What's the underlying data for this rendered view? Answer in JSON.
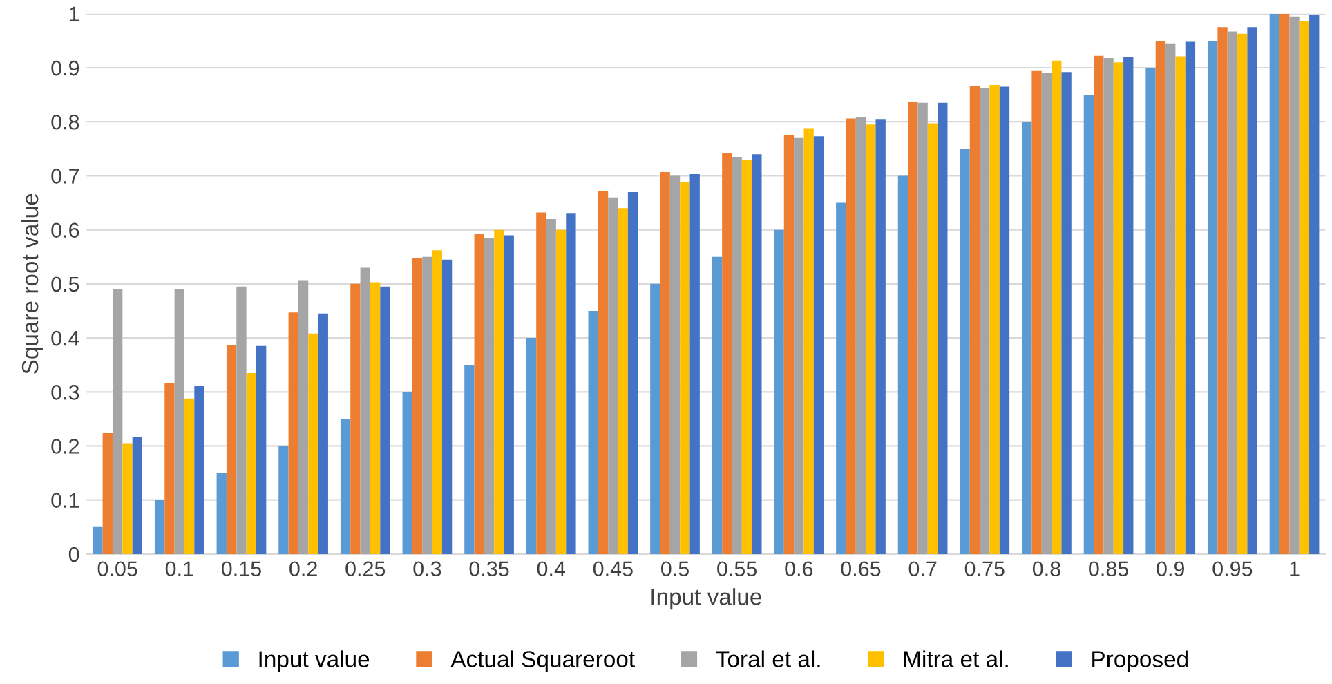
{
  "chart_data": {
    "type": "bar",
    "xlabel": "Input value",
    "ylabel": "Square root value",
    "categories": [
      "0.05",
      "0.1",
      "0.15",
      "0.2",
      "0.25",
      "0.3",
      "0.35",
      "0.4",
      "0.45",
      "0.5",
      "0.55",
      "0.6",
      "0.65",
      "0.7",
      "0.75",
      "0.8",
      "0.85",
      "0.9",
      "0.95",
      "1"
    ],
    "series": [
      {
        "name": "Input value",
        "color": "#5b9bd5",
        "values": [
          0.05,
          0.1,
          0.15,
          0.2,
          0.25,
          0.3,
          0.35,
          0.4,
          0.45,
          0.5,
          0.55,
          0.6,
          0.65,
          0.7,
          0.75,
          0.8,
          0.85,
          0.9,
          0.95,
          1
        ]
      },
      {
        "name": "Actual Squareroot",
        "color": "#ed7d31",
        "values": [
          0.224,
          0.316,
          0.387,
          0.447,
          0.5,
          0.548,
          0.592,
          0.632,
          0.671,
          0.707,
          0.742,
          0.775,
          0.806,
          0.837,
          0.866,
          0.894,
          0.922,
          0.949,
          0.975,
          1
        ]
      },
      {
        "name": "Toral et al.",
        "color": "#a5a5a5",
        "values": [
          0.49,
          0.49,
          0.495,
          0.507,
          0.53,
          0.55,
          0.585,
          0.62,
          0.66,
          0.7,
          0.735,
          0.77,
          0.808,
          0.835,
          0.862,
          0.89,
          0.918,
          0.945,
          0.967,
          0.995
        ]
      },
      {
        "name": "Mitra et al.",
        "color": "#ffc000",
        "values": [
          0.205,
          0.288,
          0.335,
          0.408,
          0.503,
          0.562,
          0.6,
          0.6,
          0.64,
          0.688,
          0.73,
          0.788,
          0.795,
          0.797,
          0.868,
          0.913,
          0.91,
          0.921,
          0.963,
          0.987
        ]
      },
      {
        "name": "Proposed",
        "color": "#4472c4",
        "values": [
          0.216,
          0.311,
          0.385,
          0.445,
          0.495,
          0.545,
          0.59,
          0.63,
          0.67,
          0.703,
          0.74,
          0.773,
          0.805,
          0.835,
          0.865,
          0.892,
          0.92,
          0.948,
          0.975,
          0.998
        ]
      }
    ],
    "ylim": [
      0,
      1
    ],
    "yticks": [
      0,
      0.1,
      0.2,
      0.3,
      0.4,
      0.5,
      0.6,
      0.7,
      0.8,
      0.9,
      1
    ],
    "grid": "y",
    "legend": "bottom"
  }
}
